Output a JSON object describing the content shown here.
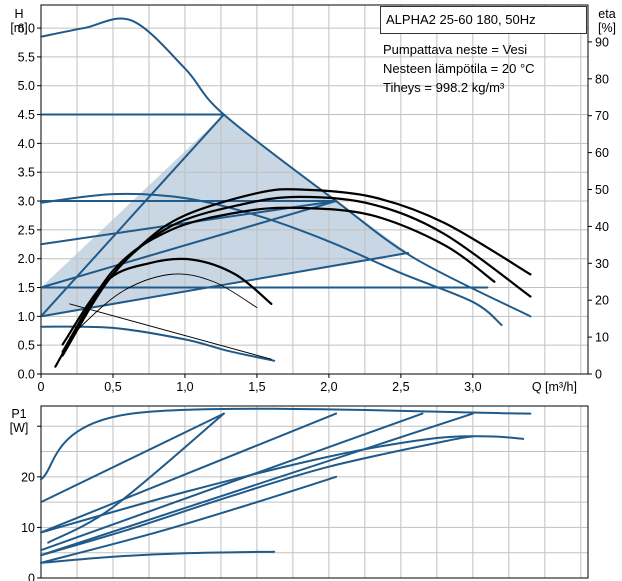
{
  "colors": {
    "curve": "#1f5a8a",
    "measured": "#000000",
    "region_fill": "#c9d6e3",
    "grid": "#c0c0c0",
    "axis": "#000000"
  },
  "product_label": "ALPHA2 25-60 180, 50Hz",
  "fluid_info": [
    "Pumpattava neste = Vesi",
    "Nesteen lämpötila = 20 °C",
    "Tiheys = 998.2 kg/m³"
  ],
  "chart_data": [
    {
      "type": "line",
      "xlabel": "Q [m³/h]",
      "ylabel": [
        "H",
        "[m]"
      ],
      "y2label": [
        "eta",
        "[%]"
      ],
      "xlim": [
        0,
        3.8
      ],
      "ylim": [
        0,
        6.4
      ],
      "y2lim": [
        0,
        100
      ],
      "grid": true,
      "xticks": [
        "0",
        "0,5",
        "1,0",
        "1,5",
        "2,0",
        "2,5",
        "3,0"
      ],
      "xtick_values": [
        0,
        0.5,
        1.0,
        1.5,
        2.0,
        2.5,
        3.0
      ],
      "yticks": [
        "0.0",
        "0.5",
        "1.0",
        "1.5",
        "2.0",
        "2.5",
        "3.0",
        "3.5",
        "4.0",
        "4.5",
        "5.0",
        "5.5",
        "6.0"
      ],
      "ytick_values": [
        0,
        0.5,
        1.0,
        1.5,
        2.0,
        2.5,
        3.0,
        3.5,
        4.0,
        4.5,
        5.0,
        5.5,
        6.0
      ],
      "y2ticks": [
        "0",
        "10",
        "20",
        "30",
        "40",
        "50",
        "60",
        "70",
        "80",
        "90"
      ],
      "y2tick_values": [
        0,
        10,
        20,
        30,
        40,
        50,
        60,
        70,
        80,
        90
      ],
      "operating_region": [
        [
          0,
          1.0
        ],
        [
          0,
          1.5
        ],
        [
          1.27,
          4.5
        ],
        [
          2.05,
          3.0
        ],
        [
          2.55,
          2.1
        ],
        [
          0,
          1.0
        ]
      ],
      "series": [
        {
          "style": "curve",
          "axis": "H",
          "points": [
            [
              0,
              5.85
            ],
            [
              0.3,
              6.0
            ],
            [
              0.63,
              6.13
            ],
            [
              1.0,
              5.3
            ],
            [
              1.27,
              4.5
            ],
            [
              2.05,
              3.0
            ],
            [
              2.6,
              2.0
            ],
            [
              3.4,
              1.0
            ]
          ]
        },
        {
          "style": "curve",
          "axis": "H",
          "points": [
            [
              0,
              4.5
            ],
            [
              1.27,
              4.5
            ]
          ]
        },
        {
          "style": "curve",
          "axis": "H",
          "points": [
            [
              0,
              3.0
            ],
            [
              2.05,
              3.0
            ]
          ]
        },
        {
          "style": "curve",
          "axis": "H",
          "points": [
            [
              0,
              1.5
            ],
            [
              2.0,
              1.5
            ],
            [
              3.1,
              1.5
            ]
          ]
        },
        {
          "style": "curve",
          "axis": "H",
          "points": [
            [
              0,
              1.0
            ],
            [
              1.27,
              4.5
            ]
          ]
        },
        {
          "style": "curve",
          "axis": "H",
          "points": [
            [
              0,
              2.25
            ],
            [
              2.05,
              3.0
            ]
          ]
        },
        {
          "style": "curve",
          "axis": "H",
          "points": [
            [
              0,
              1.5
            ],
            [
              2.05,
              3.0
            ]
          ]
        },
        {
          "style": "curve",
          "axis": "H",
          "points": [
            [
              0,
              1.0
            ],
            [
              2.55,
              2.1
            ]
          ]
        },
        {
          "style": "curve",
          "axis": "H",
          "points": [
            [
              0,
              2.97
            ],
            [
              0.5,
              3.12
            ],
            [
              1.0,
              3.05
            ],
            [
              1.5,
              2.75
            ],
            [
              2.0,
              2.3
            ],
            [
              2.5,
              1.75
            ],
            [
              3.0,
              1.25
            ],
            [
              3.2,
              0.85
            ]
          ]
        },
        {
          "style": "curve",
          "axis": "H",
          "points": [
            [
              0,
              0.82
            ],
            [
              0.5,
              0.8
            ],
            [
              1.0,
              0.6
            ],
            [
              1.3,
              0.4
            ],
            [
              1.62,
              0.23
            ]
          ]
        },
        {
          "style": "measured",
          "axis": "eta",
          "points": [
            [
              0.1,
              2
            ],
            [
              0.4,
              22
            ],
            [
              0.7,
              35
            ],
            [
              1.0,
              43
            ],
            [
              1.5,
              49
            ],
            [
              1.8,
              50
            ],
            [
              2.3,
              48
            ],
            [
              2.8,
              41
            ],
            [
              3.4,
              27
            ]
          ]
        },
        {
          "style": "measured",
          "axis": "eta",
          "points": [
            [
              0.15,
              5
            ],
            [
              0.5,
              27
            ],
            [
              0.9,
              40
            ],
            [
              1.4,
              46
            ],
            [
              1.8,
              48
            ],
            [
              2.3,
              46
            ],
            [
              2.8,
              38
            ],
            [
              3.4,
              21
            ]
          ]
        },
        {
          "style": "measured",
          "axis": "eta",
          "points": [
            [
              0.15,
              6
            ],
            [
              0.5,
              28
            ],
            [
              0.9,
              39
            ],
            [
              1.4,
              44
            ],
            [
              1.8,
              45
            ],
            [
              2.3,
              43
            ],
            [
              2.8,
              35
            ],
            [
              3.15,
              25
            ]
          ]
        },
        {
          "style": "measured",
          "axis": "eta",
          "points": [
            [
              0.15,
              8
            ],
            [
              0.45,
              25
            ],
            [
              0.75,
              30
            ],
            [
              1.05,
              31
            ],
            [
              1.35,
              27
            ],
            [
              1.6,
              19
            ]
          ]
        },
        {
          "style": "measured_thin",
          "axis": "eta",
          "points": [
            [
              0.2,
              10
            ],
            [
              0.55,
              22
            ],
            [
              0.9,
              27
            ],
            [
              1.2,
              25
            ],
            [
              1.5,
              18
            ]
          ]
        },
        {
          "style": "measured_thin",
          "axis": "eta",
          "points": [
            [
              0.2,
              19
            ],
            [
              1.6,
              4
            ]
          ]
        }
      ]
    },
    {
      "type": "line",
      "xlabel": "",
      "ylabel": [
        "P1",
        "[W]"
      ],
      "xlim": [
        0,
        3.8
      ],
      "ylim": [
        0,
        34
      ],
      "grid": true,
      "yticks": [
        "0",
        "10",
        "20"
      ],
      "ytick_values": [
        0,
        10,
        20
      ],
      "series": [
        {
          "style": "curve",
          "axis": "P1",
          "points": [
            [
              0,
              19.5
            ],
            [
              0.63,
              32.5
            ],
            [
              3.4,
              32.5
            ]
          ]
        },
        {
          "style": "curve",
          "axis": "P1",
          "points": [
            [
              0,
              15
            ],
            [
              1.27,
              32.5
            ]
          ]
        },
        {
          "style": "curve",
          "axis": "P1",
          "points": [
            [
              0,
              9.0
            ],
            [
              2.05,
              32.5
            ]
          ]
        },
        {
          "style": "curve",
          "axis": "P1",
          "points": [
            [
              0,
              5.5
            ],
            [
              2.65,
              32.5
            ]
          ]
        },
        {
          "style": "curve",
          "axis": "P1",
          "points": [
            [
              0,
              4.5
            ],
            [
              3.0,
              32.5
            ]
          ]
        },
        {
          "style": "curve",
          "axis": "P1",
          "points": [
            [
              0.05,
              7
            ],
            [
              0.5,
              14
            ],
            [
              1.27,
              32.5
            ]
          ]
        },
        {
          "style": "curve",
          "axis": "P1",
          "points": [
            [
              0,
              9
            ],
            [
              1.0,
              17
            ],
            [
              2.0,
              24
            ],
            [
              2.7,
              27.5
            ],
            [
              3.1,
              28
            ],
            [
              3.35,
              27.5
            ]
          ]
        },
        {
          "style": "curve",
          "axis": "P1",
          "points": [
            [
              0,
              4.5
            ],
            [
              0.6,
              9.5
            ],
            [
              1.3,
              16
            ],
            [
              2.0,
              22
            ],
            [
              2.8,
              27
            ],
            [
              3.0,
              28
            ]
          ]
        },
        {
          "style": "curve",
          "axis": "P1",
          "points": [
            [
              0,
              3.0
            ],
            [
              0.8,
              9
            ],
            [
              1.5,
              15
            ],
            [
              2.05,
              20
            ]
          ]
        },
        {
          "style": "curve",
          "axis": "P1",
          "points": [
            [
              0,
              3.0
            ],
            [
              0.5,
              4.2
            ],
            [
              1.0,
              4.9
            ],
            [
              1.62,
              5.2
            ]
          ]
        }
      ]
    }
  ]
}
